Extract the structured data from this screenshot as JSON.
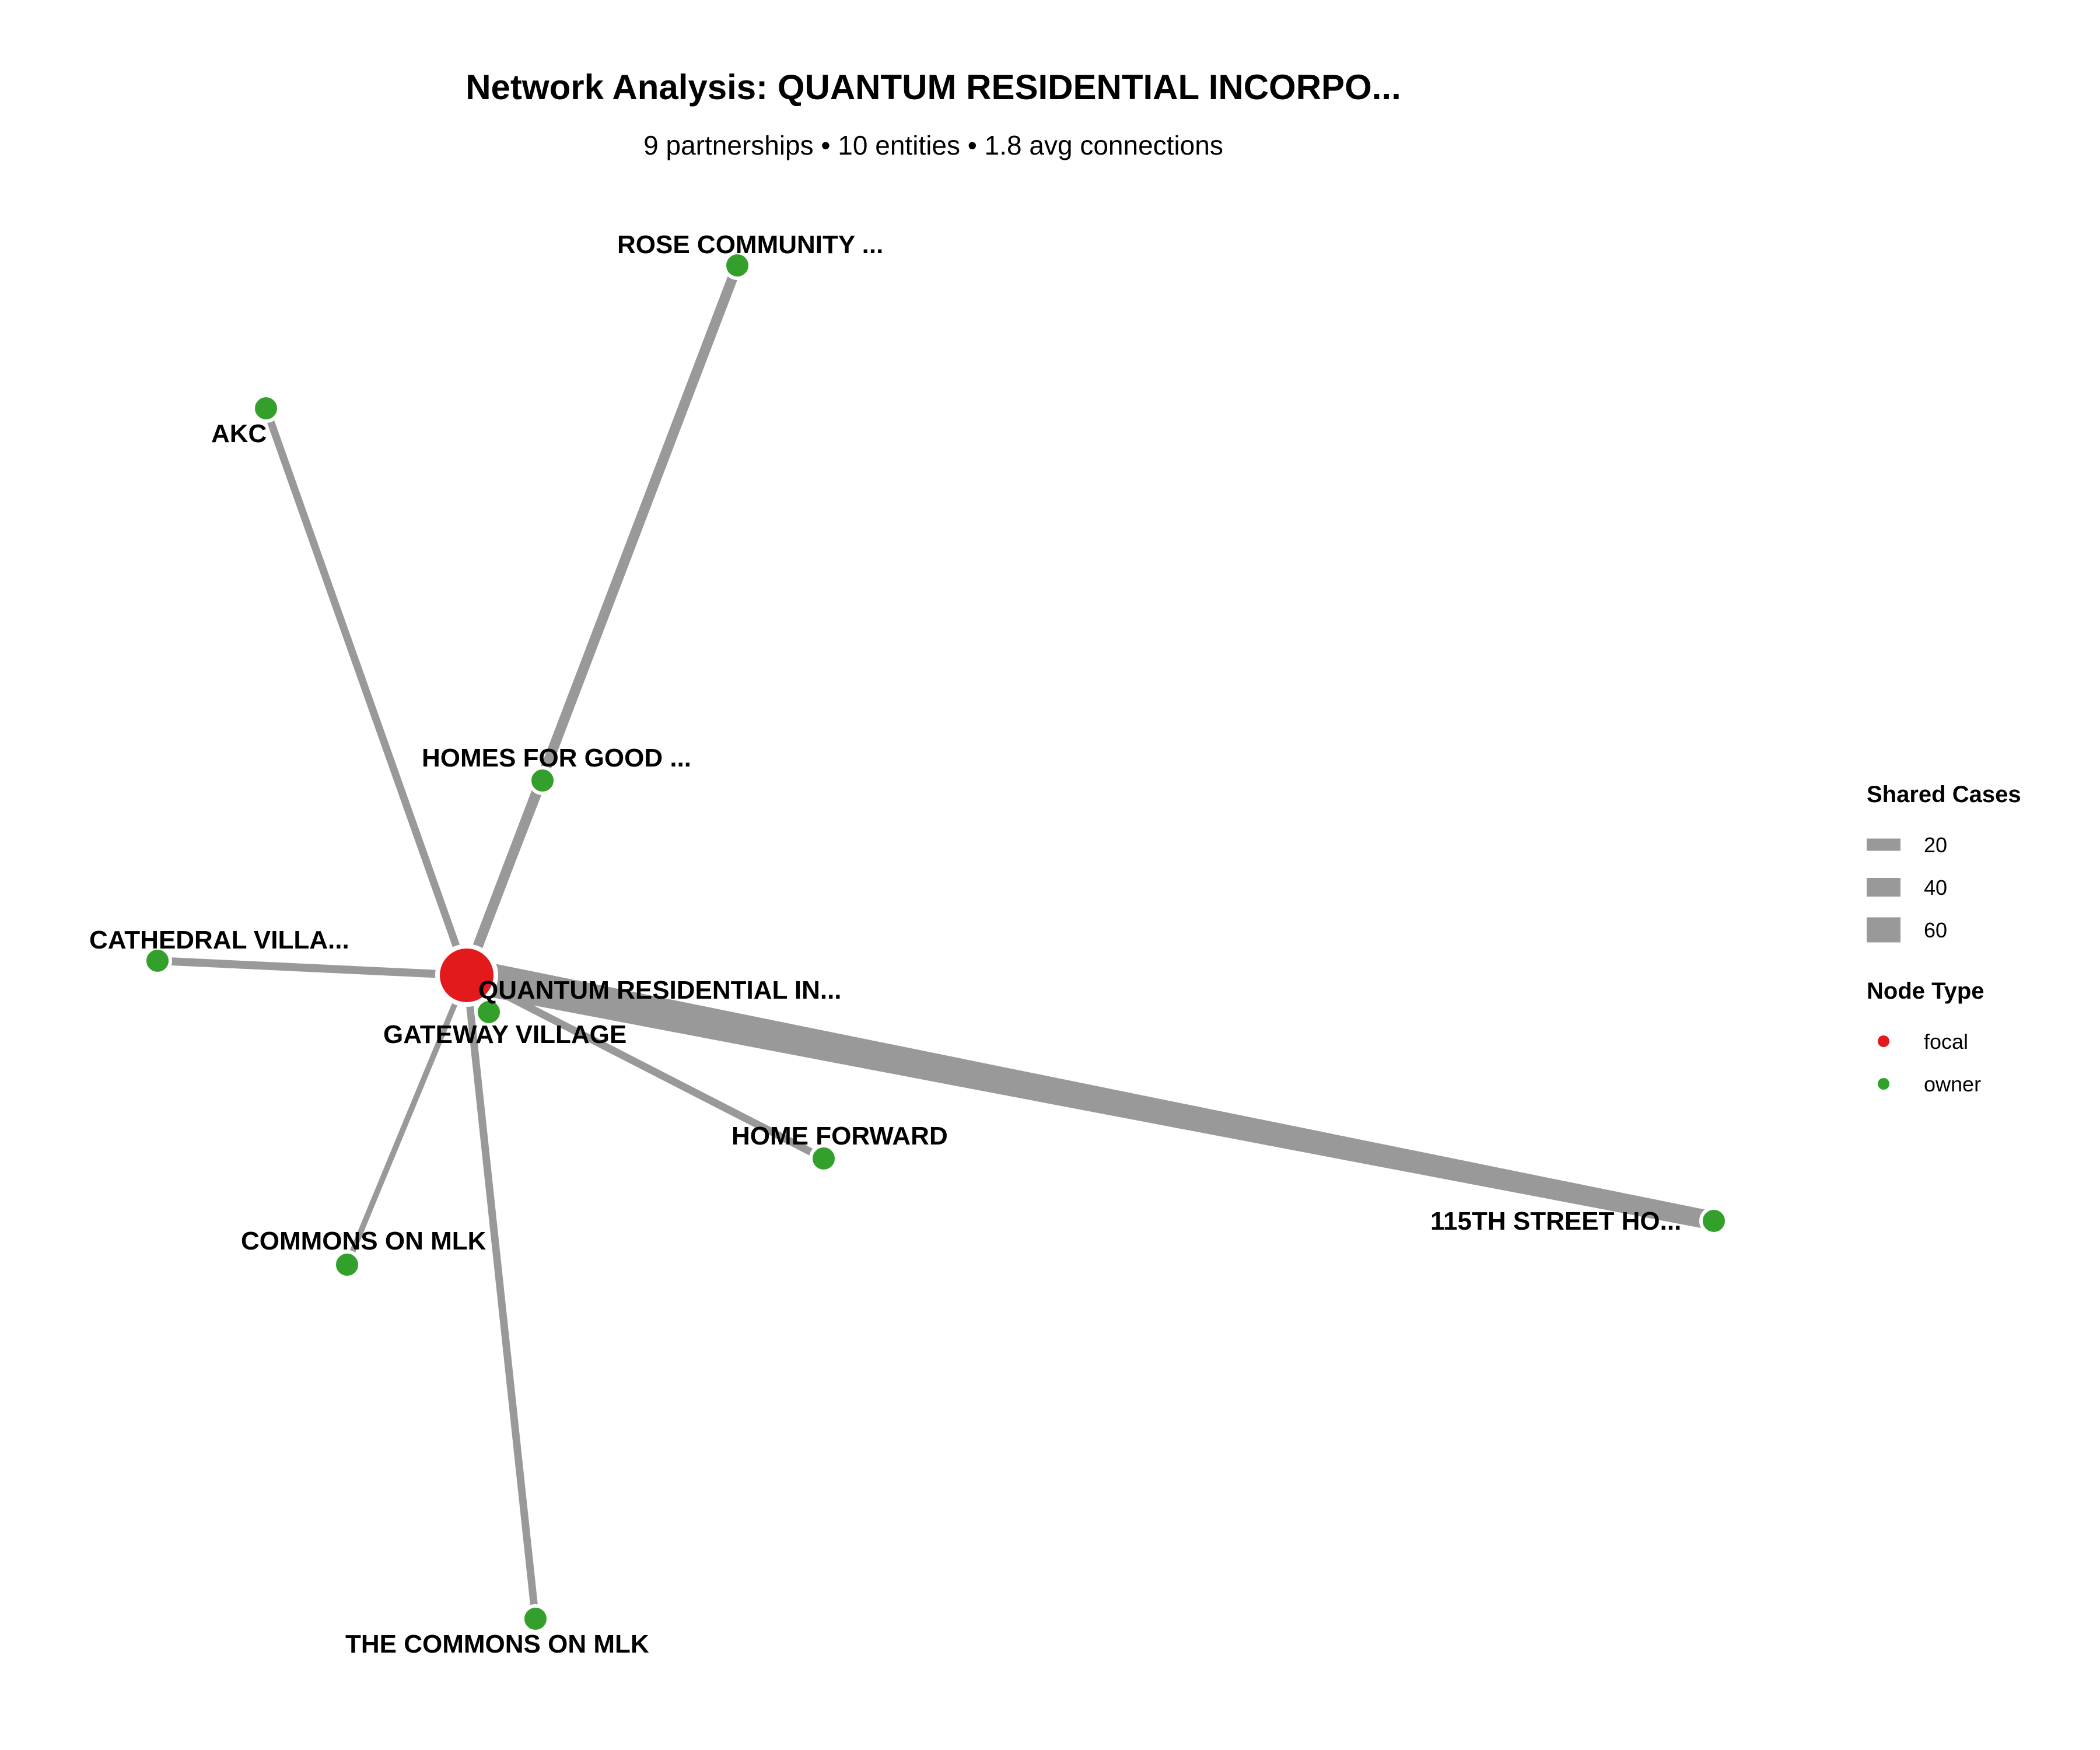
{
  "title": "Network Analysis: QUANTUM RESIDENTIAL INCORPO...",
  "subtitle": "9 partnerships • 10 entities • 1.8 avg connections",
  "colors": {
    "focal": "#e31a1c",
    "owner": "#33a02c",
    "edge": "#999999",
    "node_stroke": "#ffffff",
    "text": "#000000"
  },
  "nodes": [
    {
      "id": "quantum",
      "label": "QUANTUM RESIDENTIAL IN...",
      "type": "focal"
    },
    {
      "id": "rose",
      "label": "ROSE COMMUNITY ...",
      "type": "owner"
    },
    {
      "id": "akc",
      "label": "AKC",
      "type": "owner"
    },
    {
      "id": "homes_for_good",
      "label": "HOMES FOR GOOD ...",
      "type": "owner"
    },
    {
      "id": "cathedral",
      "label": "CATHEDRAL VILLA...",
      "type": "owner"
    },
    {
      "id": "gateway",
      "label": "GATEWAY VILLAGE",
      "type": "owner"
    },
    {
      "id": "home_forward",
      "label": "HOME FORWARD",
      "type": "owner"
    },
    {
      "id": "commons_mlk",
      "label": "COMMONS ON MLK",
      "type": "owner"
    },
    {
      "id": "the_commons_mlk",
      "label": "THE COMMONS ON MLK",
      "type": "owner"
    },
    {
      "id": "st115",
      "label": "115TH STREET HO...",
      "type": "owner"
    }
  ],
  "edges": [
    {
      "source": "quantum",
      "target": "rose",
      "shared_cases": 20
    },
    {
      "source": "quantum",
      "target": "akc",
      "shared_cases": 14
    },
    {
      "source": "quantum",
      "target": "homes_for_good",
      "shared_cases": 16
    },
    {
      "source": "quantum",
      "target": "cathedral",
      "shared_cases": 15
    },
    {
      "source": "quantum",
      "target": "gateway",
      "shared_cases": 12
    },
    {
      "source": "quantum",
      "target": "home_forward",
      "shared_cases": 14
    },
    {
      "source": "quantum",
      "target": "commons_mlk",
      "shared_cases": 10
    },
    {
      "source": "quantum",
      "target": "the_commons_mlk",
      "shared_cases": 14
    },
    {
      "source": "quantum",
      "target": "st115",
      "shared_cases": 72
    }
  ],
  "legend": {
    "shared_cases_title": "Shared Cases",
    "shared_cases_items": [
      {
        "label": "20",
        "value": 20
      },
      {
        "label": "40",
        "value": 40
      },
      {
        "label": "60",
        "value": 60
      }
    ],
    "node_type_title": "Node Type",
    "node_type_items": [
      {
        "label": "focal",
        "type": "focal"
      },
      {
        "label": "owner",
        "type": "owner"
      }
    ]
  }
}
